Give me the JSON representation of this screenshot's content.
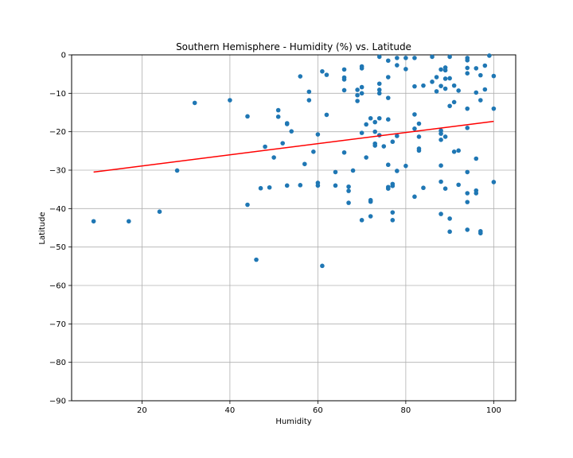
{
  "chart_data": {
    "type": "scatter",
    "title": "Southern Hemisphere - Humidity (%) vs. Latitude",
    "xlabel": "Humidity",
    "ylabel": "Latitude",
    "xlim": [
      4,
      105
    ],
    "ylim": [
      -90,
      0
    ],
    "xticks": [
      20,
      40,
      60,
      80,
      100
    ],
    "yticks": [
      0,
      -10,
      -20,
      -30,
      -40,
      -50,
      -60,
      -70,
      -80,
      -90
    ],
    "grid": true,
    "point_color": "#1f77b4",
    "regression_color": "#ff0000",
    "regression": {
      "x": [
        9,
        100
      ],
      "y": [
        -30.5,
        -17.3
      ]
    },
    "points": [
      [
        9,
        -43.3
      ],
      [
        17,
        -43.3
      ],
      [
        24,
        -40.8
      ],
      [
        28,
        -30.1
      ],
      [
        32,
        -12.5
      ],
      [
        40,
        -11.8
      ],
      [
        44,
        -16.0
      ],
      [
        44,
        -39.0
      ],
      [
        46,
        -53.3
      ],
      [
        47,
        -34.7
      ],
      [
        48,
        -23.9
      ],
      [
        49,
        -34.5
      ],
      [
        50,
        -26.7
      ],
      [
        51,
        -14.4
      ],
      [
        51,
        -16.1
      ],
      [
        52,
        -23.0
      ],
      [
        53,
        -18.0
      ],
      [
        53,
        -17.8
      ],
      [
        53,
        -34.0
      ],
      [
        54,
        -19.9
      ],
      [
        56,
        -5.6
      ],
      [
        56,
        -33.9
      ],
      [
        57,
        -28.4
      ],
      [
        58,
        -9.6
      ],
      [
        58,
        -11.8
      ],
      [
        59,
        -25.2
      ],
      [
        60,
        -20.7
      ],
      [
        60,
        -33.3
      ],
      [
        60,
        -34.0
      ],
      [
        61,
        -4.3
      ],
      [
        61,
        -54.9
      ],
      [
        62,
        -5.2
      ],
      [
        62,
        -15.6
      ],
      [
        64,
        -30.5
      ],
      [
        64,
        -34.0
      ],
      [
        66,
        -3.8
      ],
      [
        66,
        -5.9
      ],
      [
        66,
        -6.4
      ],
      [
        66,
        -9.2
      ],
      [
        66,
        -25.4
      ],
      [
        67,
        -34.3
      ],
      [
        67,
        -35.4
      ],
      [
        67,
        -38.5
      ],
      [
        68,
        -30.1
      ],
      [
        69,
        -9.1
      ],
      [
        69,
        -10.5
      ],
      [
        69,
        -12.0
      ],
      [
        70,
        -3.0
      ],
      [
        70,
        -3.5
      ],
      [
        70,
        -8.4
      ],
      [
        70,
        -10.0
      ],
      [
        70,
        -20.3
      ],
      [
        70,
        -43.0
      ],
      [
        71,
        -18.1
      ],
      [
        71,
        -26.7
      ],
      [
        72,
        -16.5
      ],
      [
        72,
        -37.8
      ],
      [
        72,
        -38.2
      ],
      [
        72,
        -42.0
      ],
      [
        73,
        -17.5
      ],
      [
        73,
        -20.0
      ],
      [
        73,
        -23.1
      ],
      [
        73,
        -23.6
      ],
      [
        74,
        -0.5
      ],
      [
        74,
        -7.5
      ],
      [
        74,
        -9.1
      ],
      [
        74,
        -10.0
      ],
      [
        74,
        -16.5
      ],
      [
        74,
        -20.9
      ],
      [
        75,
        -23.8
      ],
      [
        76,
        -1.5
      ],
      [
        76,
        -5.8
      ],
      [
        76,
        -11.2
      ],
      [
        76,
        -16.8
      ],
      [
        76,
        -28.6
      ],
      [
        76,
        -34.4
      ],
      [
        76,
        -34.8
      ],
      [
        77,
        -22.6
      ],
      [
        77,
        -33.6
      ],
      [
        77,
        -34.1
      ],
      [
        77,
        -41.0
      ],
      [
        77,
        -43.0
      ],
      [
        78,
        -0.8
      ],
      [
        78,
        -2.7
      ],
      [
        78,
        -21.1
      ],
      [
        78,
        -30.2
      ],
      [
        80,
        -0.8
      ],
      [
        80,
        -3.7
      ],
      [
        80,
        -28.9
      ],
      [
        82,
        -0.8
      ],
      [
        82,
        -8.2
      ],
      [
        82,
        -15.5
      ],
      [
        82,
        -19.2
      ],
      [
        82,
        -36.9
      ],
      [
        83,
        -17.9
      ],
      [
        83,
        -21.3
      ],
      [
        83,
        -24.4
      ],
      [
        83,
        -24.9
      ],
      [
        84,
        -8.0
      ],
      [
        84,
        -34.6
      ],
      [
        86,
        -0.5
      ],
      [
        86,
        -7.0
      ],
      [
        87,
        -5.8
      ],
      [
        87,
        -9.5
      ],
      [
        88,
        -3.8
      ],
      [
        88,
        -8.1
      ],
      [
        88,
        -19.7
      ],
      [
        88,
        -20.5
      ],
      [
        88,
        -22.1
      ],
      [
        88,
        -28.8
      ],
      [
        88,
        -33.0
      ],
      [
        88,
        -41.4
      ],
      [
        89,
        -3.3
      ],
      [
        89,
        -4.0
      ],
      [
        89,
        -6.2
      ],
      [
        89,
        -8.8
      ],
      [
        89,
        -21.3
      ],
      [
        89,
        -34.8
      ],
      [
        90,
        -0.5
      ],
      [
        90,
        -6.1
      ],
      [
        90,
        -13.3
      ],
      [
        90,
        -42.6
      ],
      [
        90,
        -46.0
      ],
      [
        91,
        -8.0
      ],
      [
        91,
        -12.3
      ],
      [
        91,
        -25.2
      ],
      [
        92,
        -9.3
      ],
      [
        92,
        -24.9
      ],
      [
        92,
        -33.8
      ],
      [
        94,
        -0.8
      ],
      [
        94,
        -1.4
      ],
      [
        94,
        -3.4
      ],
      [
        94,
        -4.8
      ],
      [
        94,
        -14.0
      ],
      [
        94,
        -19.0
      ],
      [
        94,
        -30.5
      ],
      [
        94,
        -36.0
      ],
      [
        94,
        -38.3
      ],
      [
        94,
        -45.5
      ],
      [
        96,
        -3.5
      ],
      [
        96,
        -9.8
      ],
      [
        96,
        -27.0
      ],
      [
        96,
        -35.3
      ],
      [
        96,
        -36.0
      ],
      [
        97,
        -5.3
      ],
      [
        97,
        -11.8
      ],
      [
        97,
        -45.9
      ],
      [
        97,
        -46.4
      ],
      [
        98,
        -2.8
      ],
      [
        98,
        -9.0
      ],
      [
        99,
        -0.2
      ],
      [
        100,
        -5.5
      ],
      [
        100,
        -14.0
      ],
      [
        100,
        -33.1
      ]
    ]
  }
}
